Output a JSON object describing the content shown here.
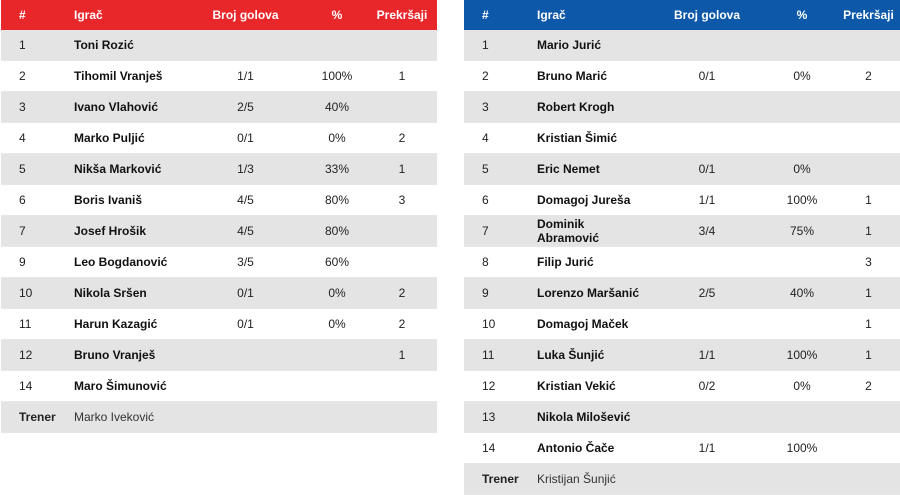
{
  "headers": {
    "number": "#",
    "player": "Igrač",
    "goals": "Broj golova",
    "percent": "%",
    "fouls": "Prekršaji"
  },
  "colors": {
    "home_header": "#e8272b",
    "away_header": "#0d58a8"
  },
  "home": {
    "players": [
      {
        "number": "1",
        "name": "Toni Rozić",
        "goals": "",
        "percent": "",
        "fouls": ""
      },
      {
        "number": "2",
        "name": "Tihomil Vranješ",
        "goals": "1/1",
        "percent": "100%",
        "fouls": "1"
      },
      {
        "number": "3",
        "name": "Ivano Vlahović",
        "goals": "2/5",
        "percent": "40%",
        "fouls": ""
      },
      {
        "number": "4",
        "name": "Marko Puljić",
        "goals": "0/1",
        "percent": "0%",
        "fouls": "2"
      },
      {
        "number": "5",
        "name": "Nikša Marković",
        "goals": "1/3",
        "percent": "33%",
        "fouls": "1"
      },
      {
        "number": "6",
        "name": "Boris Ivaniš",
        "goals": "4/5",
        "percent": "80%",
        "fouls": "3"
      },
      {
        "number": "7",
        "name": "Josef Hrošik",
        "goals": "4/5",
        "percent": "80%",
        "fouls": ""
      },
      {
        "number": "9",
        "name": "Leo Bogdanović",
        "goals": "3/5",
        "percent": "60%",
        "fouls": ""
      },
      {
        "number": "10",
        "name": "Nikola Sršen",
        "goals": "0/1",
        "percent": "0%",
        "fouls": "2"
      },
      {
        "number": "11",
        "name": "Harun Kazagić",
        "goals": "0/1",
        "percent": "0%",
        "fouls": "2"
      },
      {
        "number": "12",
        "name": "Bruno Vranješ",
        "goals": "",
        "percent": "",
        "fouls": "1"
      },
      {
        "number": "14",
        "name": "Maro Šimunović",
        "goals": "",
        "percent": "",
        "fouls": ""
      }
    ],
    "coach": {
      "label": "Trener",
      "name": "Marko Iveković"
    }
  },
  "away": {
    "players": [
      {
        "number": "1",
        "name": "Mario Jurić",
        "goals": "",
        "percent": "",
        "fouls": ""
      },
      {
        "number": "2",
        "name": "Bruno Marić",
        "goals": "0/1",
        "percent": "0%",
        "fouls": "2"
      },
      {
        "number": "3",
        "name": "Robert Krogh",
        "goals": "",
        "percent": "",
        "fouls": ""
      },
      {
        "number": "4",
        "name": "Kristian Šimić",
        "goals": "",
        "percent": "",
        "fouls": ""
      },
      {
        "number": "5",
        "name": "Eric Nemet",
        "goals": "0/1",
        "percent": "0%",
        "fouls": ""
      },
      {
        "number": "6",
        "name": "Domagoj Jureša",
        "goals": "1/1",
        "percent": "100%",
        "fouls": "1"
      },
      {
        "number": "7",
        "name": "Dominik Abramović",
        "goals": "3/4",
        "percent": "75%",
        "fouls": "1"
      },
      {
        "number": "8",
        "name": "Filip Jurić",
        "goals": "",
        "percent": "",
        "fouls": "3"
      },
      {
        "number": "9",
        "name": "Lorenzo Maršanić",
        "goals": "2/5",
        "percent": "40%",
        "fouls": "1"
      },
      {
        "number": "10",
        "name": "Domagoj Maček",
        "goals": "",
        "percent": "",
        "fouls": "1"
      },
      {
        "number": "11",
        "name": "Luka Šunjić",
        "goals": "1/1",
        "percent": "100%",
        "fouls": "1"
      },
      {
        "number": "12",
        "name": "Kristian Vekić",
        "goals": "0/2",
        "percent": "0%",
        "fouls": "2"
      },
      {
        "number": "13",
        "name": "Nikola Milošević",
        "goals": "",
        "percent": "",
        "fouls": ""
      },
      {
        "number": "14",
        "name": "Antonio Čače",
        "goals": "1/1",
        "percent": "100%",
        "fouls": ""
      }
    ],
    "coach": {
      "label": "Trener",
      "name": "Kristijan Šunjić"
    }
  }
}
